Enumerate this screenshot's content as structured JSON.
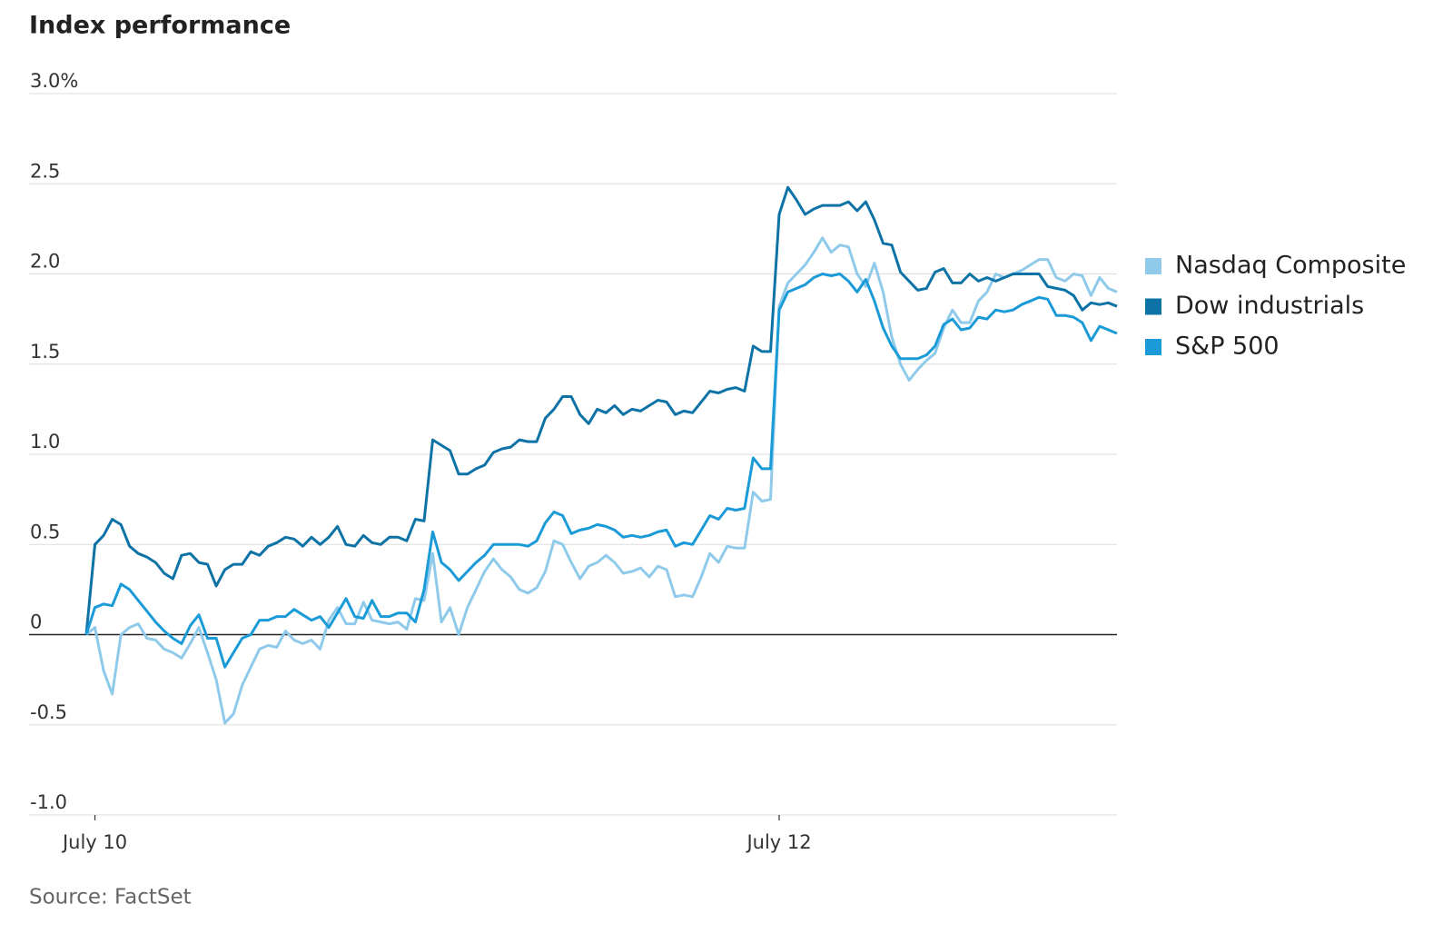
{
  "chart_data": {
    "type": "line",
    "title": "Index performance",
    "source": "Source: FactSet",
    "categories": [
      null,
      "July 10",
      null,
      null,
      null,
      null,
      null,
      null,
      null,
      null,
      null,
      null,
      null,
      null,
      null,
      null,
      null,
      null,
      null,
      null,
      null,
      null,
      null,
      null,
      null,
      null,
      null,
      null,
      null,
      null,
      null,
      null,
      null,
      null,
      null,
      null,
      null,
      null,
      null,
      null,
      null,
      null,
      null,
      null,
      null,
      null,
      null,
      null,
      null,
      null,
      null,
      null,
      null,
      null,
      null,
      null,
      null,
      null,
      null,
      null,
      null,
      null,
      null,
      null,
      null,
      null,
      null,
      null,
      null,
      null,
      null,
      null,
      null,
      null,
      null,
      null,
      null,
      null,
      null,
      null,
      "July 12",
      null,
      null,
      null,
      null,
      null,
      null,
      null,
      null,
      null,
      null,
      null,
      null,
      null,
      null,
      null,
      null,
      null,
      null,
      null,
      null,
      null,
      null,
      null,
      null,
      null,
      null,
      null,
      null,
      null,
      null,
      null,
      null,
      null,
      null,
      null,
      null,
      null,
      null,
      null
    ],
    "series": [
      {
        "name": "Nasdaq Composite",
        "color": "#8fcaea",
        "values": [
          0,
          0.04,
          -0.2,
          -0.33,
          0.0,
          0.04,
          0.06,
          -0.02,
          -0.03,
          -0.08,
          -0.1,
          -0.13,
          -0.05,
          0.04,
          -0.1,
          -0.25,
          -0.49,
          -0.44,
          -0.28,
          -0.18,
          -0.08,
          -0.06,
          -0.07,
          0.02,
          -0.03,
          -0.05,
          -0.03,
          -0.08,
          0.08,
          0.15,
          0.06,
          0.06,
          0.18,
          0.08,
          0.07,
          0.06,
          0.07,
          0.03,
          0.2,
          0.19,
          0.45,
          0.07,
          0.15,
          0.0,
          0.15,
          0.25,
          0.35,
          0.42,
          0.36,
          0.32,
          0.25,
          0.23,
          0.26,
          0.35,
          0.52,
          0.5,
          0.4,
          0.31,
          0.38,
          0.4,
          0.44,
          0.4,
          0.34,
          0.35,
          0.37,
          0.32,
          0.38,
          0.36,
          0.21,
          0.22,
          0.21,
          0.32,
          0.45,
          0.4,
          0.49,
          0.48,
          0.48,
          0.79,
          0.74,
          0.75,
          1.82,
          1.95,
          2.0,
          2.05,
          2.12,
          2.2,
          2.12,
          2.16,
          2.15,
          2.0,
          1.93,
          2.06,
          1.9,
          1.65,
          1.5,
          1.41,
          1.47,
          1.52,
          1.56,
          1.7,
          1.8,
          1.73,
          1.73,
          1.85,
          1.9,
          2.0,
          1.98,
          2.0,
          2.02,
          2.05,
          2.08,
          2.08,
          1.98,
          1.96,
          2.0,
          1.99,
          1.88,
          1.98,
          1.92,
          1.9
        ]
      },
      {
        "name": "Dow industrials",
        "color": "#0d73a6",
        "values": [
          0,
          0.5,
          0.55,
          0.64,
          0.61,
          0.49,
          0.45,
          0.43,
          0.4,
          0.34,
          0.31,
          0.44,
          0.45,
          0.4,
          0.39,
          0.27,
          0.36,
          0.39,
          0.39,
          0.46,
          0.44,
          0.49,
          0.51,
          0.54,
          0.53,
          0.49,
          0.54,
          0.5,
          0.54,
          0.6,
          0.5,
          0.49,
          0.55,
          0.51,
          0.5,
          0.54,
          0.54,
          0.52,
          0.64,
          0.63,
          1.08,
          1.05,
          1.02,
          0.89,
          0.89,
          0.92,
          0.94,
          1.01,
          1.03,
          1.04,
          1.08,
          1.07,
          1.07,
          1.2,
          1.25,
          1.32,
          1.32,
          1.22,
          1.17,
          1.25,
          1.23,
          1.27,
          1.22,
          1.25,
          1.24,
          1.27,
          1.3,
          1.29,
          1.22,
          1.24,
          1.23,
          1.29,
          1.35,
          1.34,
          1.36,
          1.37,
          1.35,
          1.6,
          1.57,
          1.57,
          2.33,
          2.48,
          2.41,
          2.33,
          2.36,
          2.38,
          2.38,
          2.38,
          2.4,
          2.35,
          2.4,
          2.3,
          2.17,
          2.16,
          2.01,
          1.96,
          1.91,
          1.92,
          2.01,
          2.03,
          1.95,
          1.95,
          2.0,
          1.96,
          1.98,
          1.96,
          1.98,
          2.0,
          2.0,
          2.0,
          2.0,
          1.93,
          1.92,
          1.91,
          1.88,
          1.8,
          1.84,
          1.83,
          1.84,
          1.82
        ]
      },
      {
        "name": "S&P 500",
        "color": "#1a9bd7",
        "values": [
          0,
          0.15,
          0.17,
          0.16,
          0.28,
          0.25,
          0.19,
          0.13,
          0.07,
          0.02,
          -0.02,
          -0.05,
          0.05,
          0.11,
          -0.02,
          -0.02,
          -0.18,
          -0.1,
          -0.02,
          0.0,
          0.08,
          0.08,
          0.1,
          0.1,
          0.14,
          0.11,
          0.08,
          0.1,
          0.04,
          0.12,
          0.2,
          0.1,
          0.09,
          0.19,
          0.1,
          0.1,
          0.12,
          0.12,
          0.07,
          0.25,
          0.57,
          0.4,
          0.36,
          0.3,
          0.35,
          0.4,
          0.44,
          0.5,
          0.5,
          0.5,
          0.5,
          0.49,
          0.52,
          0.62,
          0.68,
          0.66,
          0.56,
          0.58,
          0.59,
          0.61,
          0.6,
          0.58,
          0.54,
          0.55,
          0.54,
          0.55,
          0.57,
          0.58,
          0.49,
          0.51,
          0.5,
          0.58,
          0.66,
          0.64,
          0.7,
          0.69,
          0.7,
          0.98,
          0.92,
          0.92,
          1.8,
          1.9,
          1.92,
          1.94,
          1.98,
          2.0,
          1.99,
          2.0,
          1.96,
          1.9,
          1.97,
          1.85,
          1.7,
          1.6,
          1.53,
          1.53,
          1.53,
          1.55,
          1.6,
          1.72,
          1.75,
          1.69,
          1.7,
          1.76,
          1.75,
          1.8,
          1.79,
          1.8,
          1.83,
          1.85,
          1.87,
          1.86,
          1.77,
          1.77,
          1.76,
          1.73,
          1.63,
          1.71,
          1.69,
          1.67
        ]
      }
    ],
    "ylim": [
      -1.0,
      3.0
    ],
    "yticks": [
      {
        "value": -1.0,
        "label": "-1.0"
      },
      -0.5,
      0,
      0.5,
      {
        "value": 1.0,
        "label": "1.0"
      },
      1.5,
      {
        "value": 2.0,
        "label": "2.0"
      },
      2.5,
      {
        "value": 3.0,
        "label": "3.0%"
      }
    ],
    "grid": true,
    "legend": "right"
  }
}
